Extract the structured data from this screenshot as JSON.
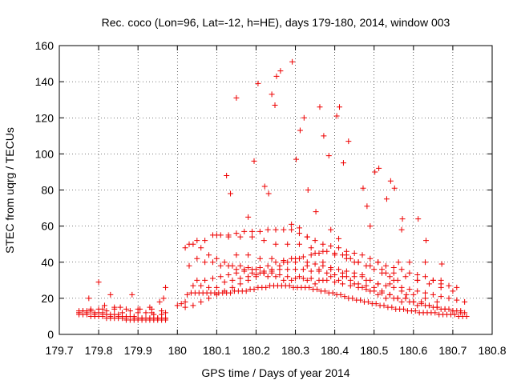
{
  "chart_data": {
    "type": "scatter",
    "title": "Rec. coco (Lon=96, Lat=-12, h=HE), days 179-180, 2014, window 003",
    "xlabel": "GPS time / Days of year 2014",
    "ylabel": "STEC from uqrg / TECUs",
    "xlim": [
      179.7,
      180.8
    ],
    "ylim": [
      0,
      160
    ],
    "xticks": [
      179.7,
      179.8,
      179.9,
      180,
      180.1,
      180.2,
      180.3,
      180.4,
      180.5,
      180.6,
      180.7,
      180.8
    ],
    "xtick_labels": [
      "179.7",
      "179.8",
      "179.9",
      "180",
      "180.1",
      "180.2",
      "180.3",
      "180.4",
      "180.5",
      "180.6",
      "180.7",
      "180.8"
    ],
    "yticks": [
      0,
      20,
      40,
      60,
      80,
      100,
      120,
      140,
      160
    ],
    "ytick_labels": [
      "0",
      "20",
      "40",
      "60",
      "80",
      "100",
      "120",
      "140",
      "160"
    ],
    "grid": true,
    "marker": "+",
    "color": "#ee0000",
    "series": [
      {
        "name": "STEC",
        "x": [
          179.75,
          179.76,
          179.77,
          179.78,
          179.79,
          179.8,
          179.81,
          179.82,
          179.83,
          179.84,
          179.85,
          179.86,
          179.87,
          179.88,
          179.89,
          179.9,
          179.91,
          179.92,
          179.93,
          179.94,
          179.95,
          179.96,
          179.97,
          179.75,
          179.76,
          179.77,
          179.78,
          179.79,
          179.8,
          179.81,
          179.82,
          179.83,
          179.84,
          179.85,
          179.86,
          179.87,
          179.88,
          179.89,
          179.9,
          179.91,
          179.92,
          179.93,
          179.94,
          179.95,
          179.96,
          179.97,
          179.75,
          179.77,
          179.79,
          179.81,
          179.83,
          179.85,
          179.87,
          179.89,
          179.91,
          179.93,
          179.95,
          179.97,
          179.76,
          179.78,
          179.8,
          179.82,
          179.84,
          179.86,
          179.88,
          179.9,
          179.92,
          179.94,
          179.96,
          179.75,
          179.78,
          179.81,
          179.84,
          179.87,
          179.9,
          179.93,
          179.96,
          179.775,
          179.8,
          179.815,
          179.83,
          179.855,
          179.885,
          179.905,
          179.935,
          179.955,
          179.97,
          179.97,
          179.965,
          179.935,
          180.025,
          180.035,
          180.045,
          180.055,
          180.065,
          180.075,
          180.085,
          180.095,
          180.105,
          180.115,
          180.125,
          180.135,
          180.145,
          180.155,
          180.165,
          180.175,
          180.185,
          180.195,
          180.205,
          180.215,
          180.225,
          180.235,
          180.245,
          180.255,
          180.265,
          180.275,
          180.285,
          180.295,
          180.305,
          180.315,
          180.325,
          180.335,
          180.345,
          180.355,
          180.365,
          180.375,
          180.385,
          180.395,
          180.405,
          180.415,
          180.425,
          180.435,
          180.445,
          180.455,
          180.465,
          180.475,
          180.485,
          180.495,
          180.505,
          180.515,
          180.525,
          180.535,
          180.545,
          180.555,
          180.565,
          180.575,
          180.585,
          180.595,
          180.605,
          180.615,
          180.625,
          180.635,
          180.645,
          180.655,
          180.665,
          180.675,
          180.685,
          180.695,
          180.705,
          180.715,
          180.725,
          180.735,
          180.03,
          180.05,
          180.07,
          180.09,
          180.11,
          180.13,
          180.15,
          180.17,
          180.19,
          180.21,
          180.23,
          180.25,
          180.27,
          180.29,
          180.31,
          180.33,
          180.35,
          180.37,
          180.39,
          180.41,
          180.43,
          180.45,
          180.47,
          180.49,
          180.51,
          180.53,
          180.55,
          180.57,
          180.59,
          180.61,
          180.63,
          180.65,
          180.67,
          180.69,
          180.71,
          180.73,
          180.03,
          180.05,
          180.07,
          180.09,
          180.11,
          180.13,
          180.15,
          180.17,
          180.19,
          180.21,
          180.23,
          180.25,
          180.27,
          180.29,
          180.31,
          180.33,
          180.35,
          180.37,
          180.39,
          180.41,
          180.43,
          180.45,
          180.47,
          180.49,
          180.51,
          180.53,
          180.55,
          180.57,
          180.59,
          180.61,
          180.63,
          180.65,
          180.67,
          180.69,
          180.71,
          180.73,
          180.0,
          180.01,
          180.02,
          180.04,
          180.06,
          180.08,
          180.1,
          180.12,
          180.14,
          180.16,
          180.18,
          180.2,
          180.22,
          180.24,
          180.26,
          180.28,
          180.3,
          180.32,
          180.34,
          180.36,
          180.38,
          180.4,
          180.42,
          180.44,
          180.46,
          180.48,
          180.5,
          180.52,
          180.54,
          180.56,
          180.58,
          180.6,
          180.62,
          180.64,
          180.66,
          180.68,
          180.7,
          180.72,
          180.02,
          180.04,
          180.06,
          180.08,
          180.1,
          180.12,
          180.14,
          180.16,
          180.18,
          180.2,
          180.22,
          180.24,
          180.26,
          180.28,
          180.3,
          180.32,
          180.34,
          180.36,
          180.38,
          180.4,
          180.42,
          180.44,
          180.46,
          180.48,
          180.5,
          180.52,
          180.54,
          180.56,
          180.58,
          180.6,
          180.62,
          180.64,
          180.66,
          180.68,
          180.7,
          180.72,
          180.1,
          180.13,
          180.16,
          180.19,
          180.22,
          180.25,
          180.28,
          180.31,
          180.34,
          180.37,
          180.4,
          180.43,
          180.46,
          180.49,
          180.52,
          180.55,
          180.58,
          180.61,
          180.64,
          180.67,
          180.7,
          180.15,
          180.18,
          180.21,
          180.24,
          180.27,
          180.3,
          180.33,
          180.36,
          180.39,
          180.42,
          180.45,
          180.48,
          180.51,
          180.54,
          180.57,
          180.6,
          180.63,
          180.66,
          180.02,
          180.04,
          180.06,
          180.08,
          180.1,
          180.12,
          180.14,
          180.16,
          180.18,
          180.2,
          180.22,
          180.24,
          180.26,
          180.28,
          180.3,
          180.32,
          180.34,
          180.36,
          180.38,
          180.4,
          180.42,
          180.44,
          180.46,
          180.48,
          180.5,
          180.52,
          180.54,
          180.56,
          180.125,
          180.135,
          180.15,
          180.18,
          180.195,
          180.205,
          180.222,
          180.232,
          180.24,
          180.248,
          180.252,
          180.262,
          180.292,
          180.302,
          180.312,
          180.322,
          180.332,
          180.352,
          180.362,
          180.372,
          180.385,
          180.405,
          180.412,
          180.422,
          180.435,
          180.472,
          180.482,
          180.502,
          180.512,
          180.532,
          180.542,
          180.552,
          180.562,
          180.572,
          180.582,
          180.612,
          180.632,
          180.672,
          180.29,
          180.31,
          180.33,
          180.35,
          180.37,
          180.39,
          180.41,
          180.43,
          180.45,
          180.47,
          180.49,
          180.51,
          180.53,
          180.55,
          180.57,
          180.59,
          180.61,
          180.63,
          180.65,
          180.67,
          180.05,
          180.07,
          180.09,
          180.11,
          180.13,
          180.15,
          180.17,
          180.19,
          180.21,
          180.23,
          180.25,
          180.27,
          180.29,
          180.31,
          180.33,
          180.35,
          180.37,
          180.39,
          180.41,
          180.43,
          180.45,
          180.47,
          180.49,
          180.51,
          180.53,
          180.55,
          180.57,
          180.59,
          180.61,
          180.63,
          180.65,
          180.67,
          180.69,
          180.71
        ],
        "y": [
          13,
          13,
          13,
          13,
          12,
          12,
          12,
          11,
          11,
          11,
          11,
          10,
          10,
          10,
          10,
          9,
          9,
          9,
          9,
          9,
          9,
          9,
          9,
          11,
          11,
          11,
          10,
          10,
          10,
          10,
          9,
          9,
          9,
          9,
          9,
          8,
          8,
          8,
          8,
          8,
          8,
          8,
          8,
          8,
          8,
          8,
          12,
          12,
          11,
          11,
          10,
          10,
          9,
          9,
          9,
          9,
          9,
          9,
          13,
          13,
          14,
          13,
          14,
          12,
          13,
          12,
          12,
          11,
          11,
          12,
          14,
          14,
          15,
          14,
          14,
          15,
          13,
          20,
          29,
          16,
          22,
          15,
          22,
          14,
          14,
          18,
          12,
          26,
          20,
          12,
          22,
          23,
          23,
          23,
          23,
          23,
          23,
          23,
          23,
          23,
          23,
          23,
          24,
          24,
          24,
          24,
          25,
          25,
          26,
          26,
          26,
          27,
          27,
          27,
          27,
          27,
          27,
          26,
          26,
          26,
          26,
          26,
          25,
          25,
          24,
          24,
          23,
          23,
          22,
          22,
          21,
          20,
          20,
          19,
          19,
          18,
          18,
          17,
          17,
          16,
          16,
          15,
          15,
          14,
          14,
          14,
          13,
          13,
          13,
          12,
          12,
          12,
          12,
          12,
          11,
          11,
          11,
          11,
          11,
          10,
          10,
          10,
          38,
          30,
          30,
          31,
          32,
          33,
          34,
          35,
          36,
          37,
          38,
          40,
          41,
          42,
          42,
          40,
          39,
          38,
          37,
          36,
          35,
          34,
          32,
          30,
          28,
          27,
          26,
          26,
          25,
          24,
          23,
          22,
          21,
          20,
          19,
          18,
          50,
          42,
          40,
          40,
          38,
          38,
          36,
          36,
          34,
          34,
          32,
          32,
          30,
          30,
          32,
          30,
          28,
          30,
          32,
          30,
          32,
          28,
          26,
          24,
          22,
          20,
          20,
          18,
          18,
          16,
          16,
          15,
          14,
          14,
          13,
          12,
          16,
          17,
          18,
          27,
          27,
          26,
          26,
          29,
          30,
          31,
          32,
          33,
          34,
          35,
          36,
          36,
          36,
          36,
          35,
          35,
          34,
          33,
          32,
          30,
          28,
          27,
          26,
          24,
          22,
          20,
          20,
          18,
          17,
          16,
          15,
          14,
          13,
          12,
          48,
          50,
          48,
          44,
          42,
          40,
          38,
          38,
          37,
          36,
          35,
          34,
          33,
          32,
          31,
          31,
          31,
          30,
          30,
          29,
          28,
          27,
          26,
          25,
          24,
          23,
          22,
          20,
          20,
          18,
          18,
          16,
          15,
          14,
          13,
          13,
          55,
          54,
          54,
          54,
          52,
          50,
          50,
          50,
          48,
          46,
          44,
          42,
          40,
          38,
          36,
          34,
          32,
          30,
          28,
          26,
          24,
          44,
          44,
          42,
          42,
          40,
          40,
          38,
          36,
          36,
          34,
          32,
          30,
          28,
          28,
          24,
          22,
          20,
          18,
          15,
          16,
          18,
          20,
          22,
          24,
          26,
          28,
          30,
          32,
          34,
          36,
          38,
          40,
          42,
          43,
          44,
          45,
          46,
          45,
          44,
          42,
          40,
          38,
          36,
          34,
          32,
          30,
          88,
          78,
          131,
          65,
          96,
          139,
          82,
          78,
          133,
          127,
          143,
          146,
          151,
          97,
          113,
          120,
          80,
          68,
          126,
          110,
          99,
          121,
          126,
          95,
          107,
          81,
          71,
          90,
          92,
          75,
          85,
          81,
          40,
          64,
          22,
          64,
          52,
          39,
          61,
          59,
          54,
          45,
          40,
          58,
          53,
          44,
          40,
          33,
          60,
          40,
          34,
          30,
          58,
          40,
          30,
          40,
          30,
          30,
          52,
          52,
          55,
          55,
          55,
          56,
          57,
          57,
          57,
          58,
          58,
          58,
          58,
          56,
          54,
          52,
          50,
          49,
          48,
          46,
          45,
          44,
          42,
          40,
          38,
          37,
          36,
          34,
          33,
          32,
          30,
          28,
          27,
          26
        ]
      }
    ]
  }
}
